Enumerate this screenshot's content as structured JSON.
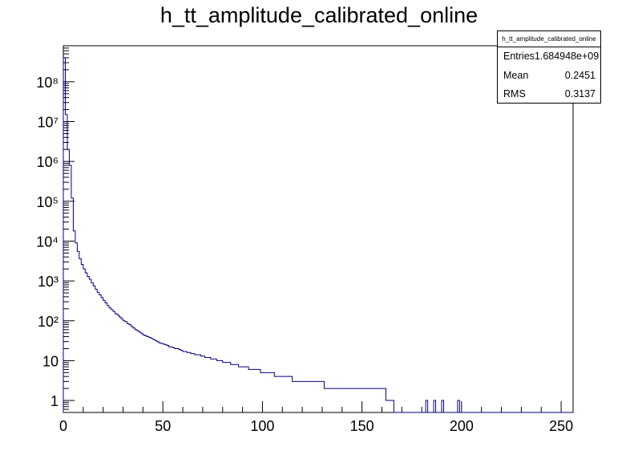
{
  "chart_data": {
    "type": "histogram",
    "title": "h_tt_amplitude_calibrated_online",
    "xlabel": "",
    "ylabel": "",
    "xlim": [
      0,
      256
    ],
    "ylim": [
      0.5,
      800000000
    ],
    "log_y": true,
    "grid": false,
    "bin_width": 1,
    "x_ticks": [
      0,
      50,
      100,
      150,
      200,
      250
    ],
    "y_ticks": [
      {
        "value": 1,
        "label": "1"
      },
      {
        "value": 10,
        "label": "10"
      },
      {
        "value": 100,
        "label": "10²"
      },
      {
        "value": 1000,
        "label": "10³"
      },
      {
        "value": 10000,
        "label": "10⁴"
      },
      {
        "value": 100000,
        "label": "10⁵"
      },
      {
        "value": 1000000,
        "label": "10⁶"
      },
      {
        "value": 10000000,
        "label": "10⁷"
      },
      {
        "value": 100000000,
        "label": "10⁸"
      }
    ],
    "line_color": "#000080",
    "bins_y": [
      400000000,
      15000000,
      2000000,
      800000,
      120000,
      18000,
      9000,
      5500,
      3600,
      2600,
      2000,
      1600,
      1300,
      1100,
      900,
      750,
      620,
      520,
      450,
      380,
      320,
      280,
      240,
      210,
      190,
      170,
      150,
      140,
      125,
      112,
      100,
      95,
      85,
      80,
      72,
      66,
      60,
      56,
      52,
      48,
      44,
      42,
      40,
      38,
      36,
      34,
      32,
      30,
      28,
      27,
      26,
      25,
      24,
      22,
      22,
      21,
      20,
      20,
      19,
      18,
      17,
      17,
      16,
      16,
      15,
      15,
      14,
      14,
      14,
      13,
      13,
      12,
      12,
      12,
      11,
      11,
      11,
      10,
      10,
      10,
      9,
      9,
      9,
      9,
      8,
      8,
      8,
      8,
      7,
      7,
      7,
      7,
      7,
      6,
      6,
      6,
      6,
      6,
      6,
      5,
      5,
      5,
      5,
      5,
      5,
      5,
      4,
      4,
      4,
      4,
      4,
      4,
      4,
      4,
      4,
      3,
      3,
      3,
      3,
      3,
      3,
      3,
      3,
      3,
      3,
      3,
      3,
      3,
      3,
      3,
      3,
      2,
      2,
      2,
      2,
      2,
      2,
      2,
      2,
      2,
      2,
      2,
      2,
      2,
      2,
      2,
      2,
      2,
      2,
      2,
      2,
      2,
      2,
      2,
      2,
      2,
      2,
      2,
      2,
      2,
      2,
      2,
      1,
      1,
      1,
      1,
      0,
      0,
      0,
      0,
      0,
      0,
      0,
      0,
      0,
      0,
      0,
      0,
      0,
      0,
      0,
      0,
      1,
      0,
      0,
      0,
      1,
      0,
      0,
      0,
      1,
      0,
      0,
      0,
      0,
      0,
      0,
      0,
      1,
      0,
      0,
      0,
      0,
      0,
      0,
      0,
      0,
      0,
      0,
      0,
      0,
      0,
      0,
      0,
      0,
      0,
      0,
      0,
      0,
      0,
      0,
      0,
      0,
      0,
      0,
      0,
      0,
      0,
      0,
      0,
      0,
      0,
      0,
      0,
      0,
      0,
      0,
      0,
      0,
      0,
      0,
      0,
      0,
      0,
      0,
      0,
      0,
      0,
      0,
      0,
      0,
      0,
      0,
      0,
      0,
      0,
      0,
      0,
      0,
      0,
      0,
      0,
      0,
      0,
      0,
      0,
      0,
      0,
      0,
      0,
      0,
      0,
      0
    ]
  },
  "stats": {
    "name": "h_tt_amplitude_calibrated_online",
    "entries_label": "Entries",
    "entries_value": "1.684948e+09",
    "mean_label": "Mean",
    "mean_value": "0.2451",
    "rms_label": "RMS",
    "rms_value": "0.3137"
  }
}
